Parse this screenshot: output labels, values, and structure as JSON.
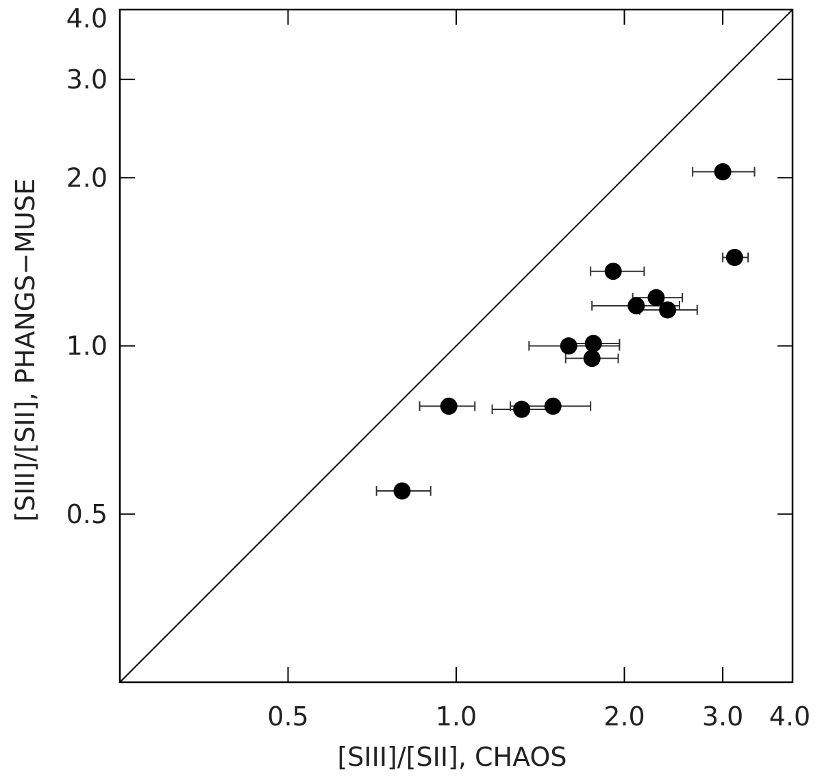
{
  "chart_data": {
    "type": "scatter",
    "title": "",
    "xlabel": "[SIII]/[SII], CHAOS",
    "ylabel": "[SIII]/[SII], PHANGS−MUSE",
    "xscale": "log",
    "yscale": "log",
    "xlim": [
      0.25,
      4.0
    ],
    "ylim": [
      0.25,
      4.0
    ],
    "xticks": [
      0.5,
      1.0,
      2.0,
      3.0,
      4.0
    ],
    "yticks": [
      0.5,
      1.0,
      2.0,
      3.0,
      4.0
    ],
    "xtick_labels": [
      "0.5",
      "1.0",
      "2.0",
      "3.0",
      "4.0"
    ],
    "ytick_labels": [
      "0.5",
      "1.0",
      "2.0",
      "3.0",
      "4.0"
    ],
    "reference_line": "one-to-one",
    "grid": false,
    "marker_color": "#000000",
    "line_color": "#000000",
    "points": [
      {
        "x": 0.8,
        "y": 0.55,
        "xerr_low": 0.72,
        "xerr_high": 0.9
      },
      {
        "x": 0.97,
        "y": 0.78,
        "xerr_low": 0.86,
        "xerr_high": 1.08
      },
      {
        "x": 1.31,
        "y": 0.77,
        "xerr_low": 1.16,
        "xerr_high": 1.51
      },
      {
        "x": 1.49,
        "y": 0.78,
        "xerr_low": 1.25,
        "xerr_high": 1.74
      },
      {
        "x": 1.59,
        "y": 1.0,
        "xerr_low": 1.35,
        "xerr_high": 1.96
      },
      {
        "x": 1.76,
        "y": 1.01,
        "xerr_low": 1.58,
        "xerr_high": 1.96
      },
      {
        "x": 1.75,
        "y": 0.95,
        "xerr_low": 1.57,
        "xerr_high": 1.95
      },
      {
        "x": 1.91,
        "y": 1.36,
        "xerr_low": 1.74,
        "xerr_high": 2.17
      },
      {
        "x": 2.1,
        "y": 1.18,
        "xerr_low": 1.75,
        "xerr_high": 2.51
      },
      {
        "x": 2.28,
        "y": 1.22,
        "xerr_low": 2.07,
        "xerr_high": 2.54
      },
      {
        "x": 2.39,
        "y": 1.16,
        "xerr_low": 2.13,
        "xerr_high": 2.7
      },
      {
        "x": 3.0,
        "y": 2.05,
        "xerr_low": 2.65,
        "xerr_high": 3.42
      },
      {
        "x": 3.15,
        "y": 1.44,
        "xerr_low": 3.0,
        "xerr_high": 3.33
      }
    ]
  }
}
